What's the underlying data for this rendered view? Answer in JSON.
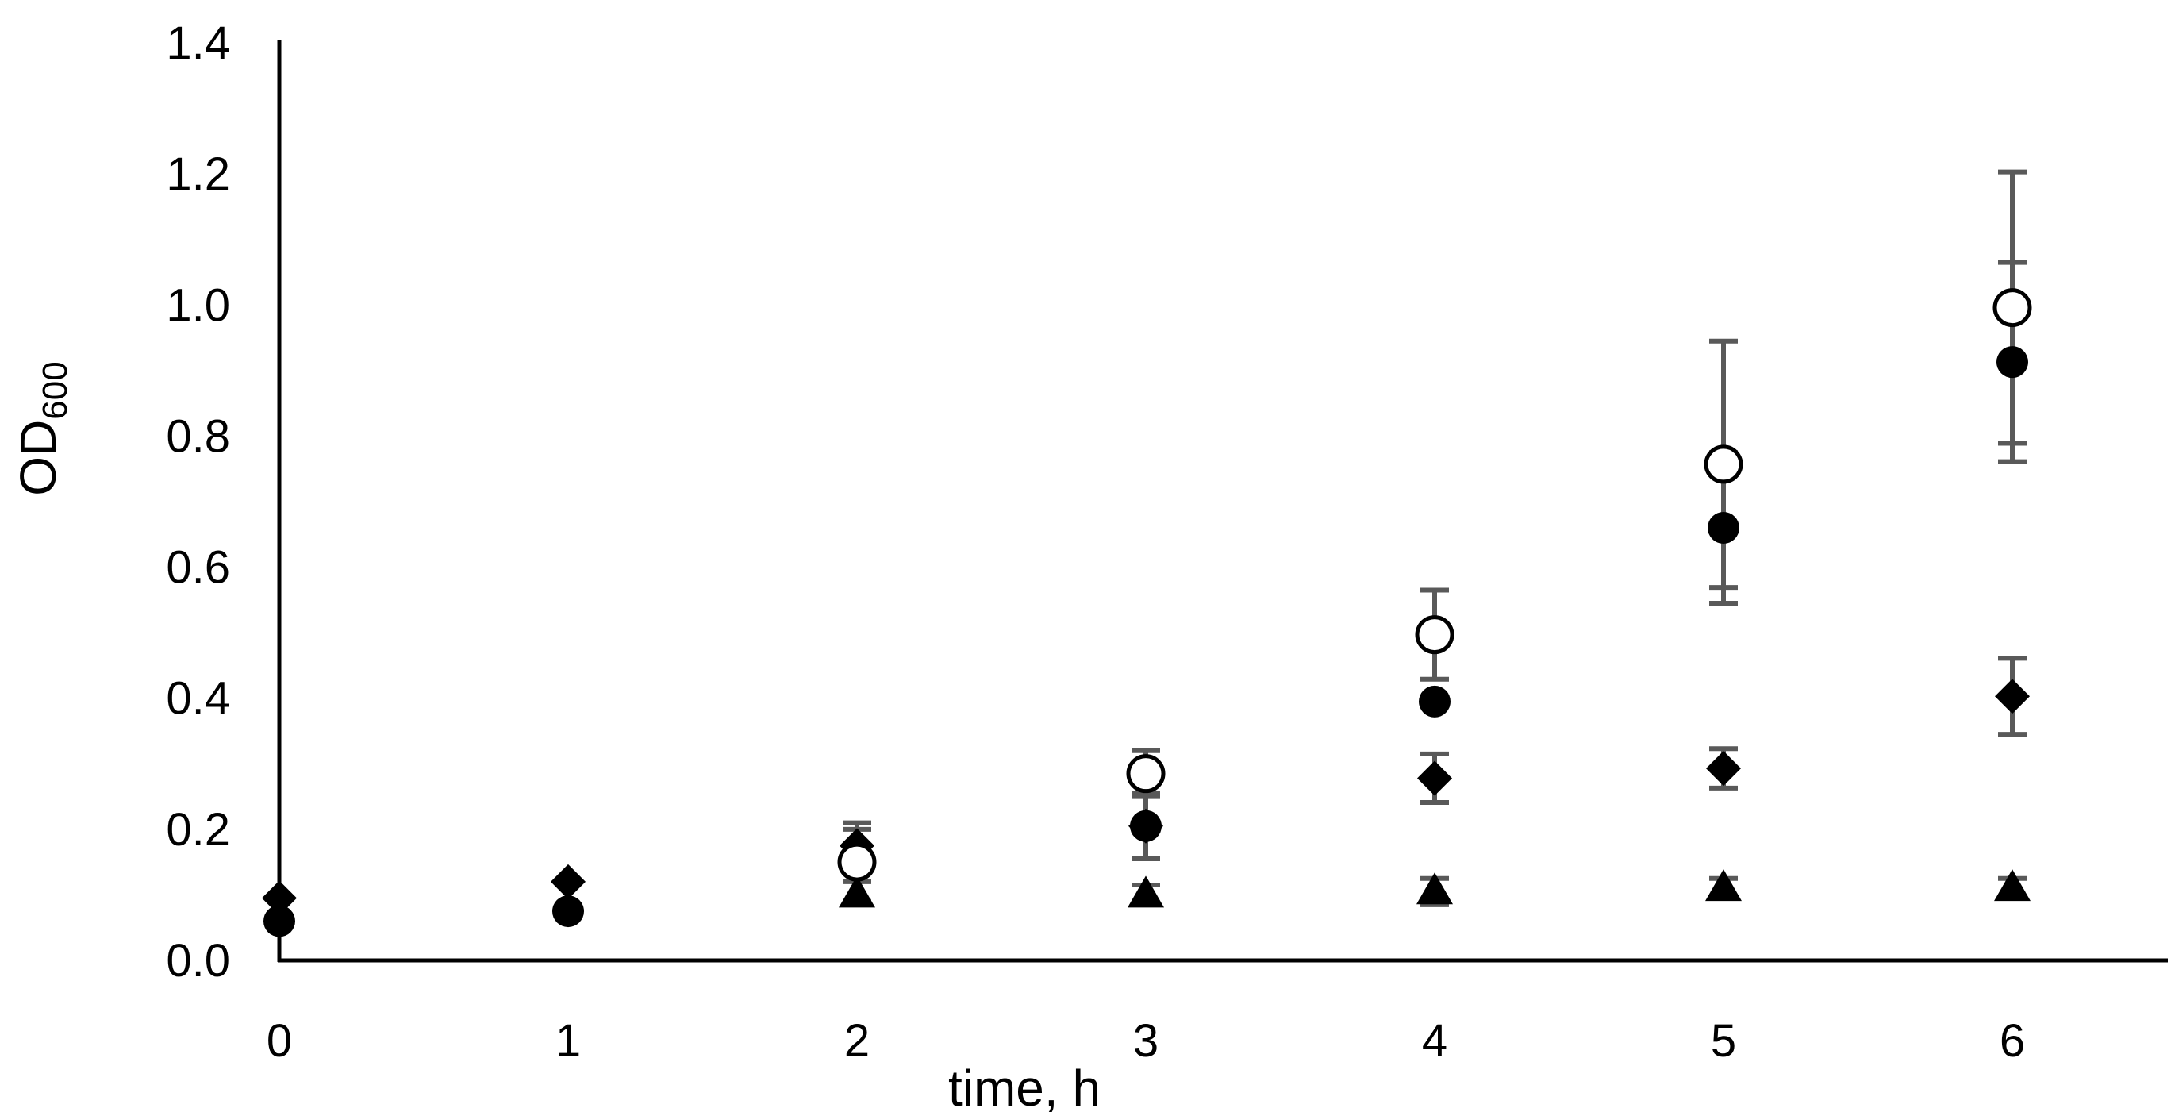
{
  "chart_data": {
    "type": "scatter",
    "title": "",
    "xlabel": "time, h",
    "ylabel_main": "OD",
    "ylabel_sub": "600",
    "xlim": [
      0,
      6.6
    ],
    "ylim": [
      0,
      1.4
    ],
    "x_ticks": [
      "0",
      "1",
      "2",
      "3",
      "4",
      "5",
      "6"
    ],
    "y_ticks": [
      "0.0",
      "0.2",
      "0.4",
      "0.6",
      "0.8",
      "1.0",
      "1.2",
      "1.4"
    ],
    "grid": false,
    "legend": "none",
    "colors": {
      "marker": "#000000",
      "error_bar": "#595959",
      "axis": "#000000"
    },
    "series": [
      {
        "marker": "open-circle",
        "points": [
          {
            "x": 2,
            "y": 0.15,
            "err": 0.06
          },
          {
            "x": 3,
            "y": 0.285,
            "err": 0.035
          },
          {
            "x": 4,
            "y": 0.497,
            "err": 0.068
          },
          {
            "x": 5,
            "y": 0.757,
            "err": 0.188
          },
          {
            "x": 6,
            "y": 0.996,
            "err": 0.207
          }
        ]
      },
      {
        "marker": "filled-circle",
        "points": [
          {
            "x": 0,
            "y": 0.06,
            "err": 0.0
          },
          {
            "x": 1,
            "y": 0.075,
            "err": 0.0
          },
          {
            "x": 2,
            "y": 0.16,
            "err": 0.04
          },
          {
            "x": 3,
            "y": 0.205,
            "err": 0.05
          },
          {
            "x": 4,
            "y": 0.395,
            "err": 0.0
          },
          {
            "x": 5,
            "y": 0.66,
            "err": 0.115
          },
          {
            "x": 6,
            "y": 0.913,
            "err": 0.152
          }
        ]
      },
      {
        "marker": "diamond",
        "points": [
          {
            "x": 0,
            "y": 0.095,
            "err": 0.0
          },
          {
            "x": 1,
            "y": 0.12,
            "err": 0.0
          },
          {
            "x": 2,
            "y": 0.175,
            "err": 0.0
          },
          {
            "x": 3,
            "y": 0.205,
            "err": 0.0
          },
          {
            "x": 4,
            "y": 0.278,
            "err": 0.037
          },
          {
            "x": 5,
            "y": 0.293,
            "err": 0.03
          },
          {
            "x": 6,
            "y": 0.403,
            "err": 0.058
          }
        ]
      },
      {
        "marker": "triangle",
        "points": [
          {
            "x": 2,
            "y": 0.1,
            "err": 0.0
          },
          {
            "x": 3,
            "y": 0.1,
            "err": 0.015
          },
          {
            "x": 4,
            "y": 0.105,
            "err": 0.02
          },
          {
            "x": 5,
            "y": 0.11,
            "err": 0.015
          },
          {
            "x": 6,
            "y": 0.11,
            "err": 0.015
          }
        ]
      }
    ]
  }
}
